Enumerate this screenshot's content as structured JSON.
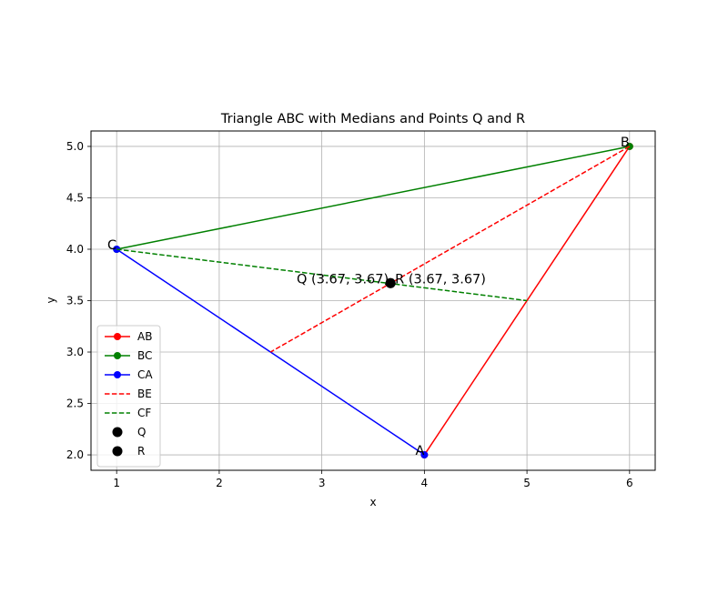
{
  "chart_data": {
    "type": "line",
    "title": "Triangle ABC with Medians and Points Q and R",
    "xlabel": "x",
    "ylabel": "y",
    "xlim": [
      0.75,
      6.25
    ],
    "ylim": [
      1.85,
      5.15
    ],
    "xticks": [
      1,
      2,
      3,
      4,
      5,
      6
    ],
    "xtick_labels": [
      "1",
      "2",
      "3",
      "4",
      "5",
      "6"
    ],
    "yticks": [
      2.0,
      2.5,
      3.0,
      3.5,
      4.0,
      4.5,
      5.0
    ],
    "ytick_labels": [
      "2.0",
      "2.5",
      "3.0",
      "3.5",
      "4.0",
      "4.5",
      "5.0"
    ],
    "grid": true,
    "legend_position": "lower-left",
    "series": [
      {
        "name": "AB",
        "x": [
          4,
          6
        ],
        "y": [
          2,
          5
        ],
        "color": "#ff0000",
        "dash": "solid",
        "marker": true
      },
      {
        "name": "BC",
        "x": [
          6,
          1
        ],
        "y": [
          5,
          4
        ],
        "color": "#008000",
        "dash": "solid",
        "marker": true
      },
      {
        "name": "CA",
        "x": [
          1,
          4
        ],
        "y": [
          4,
          2
        ],
        "color": "#0000ff",
        "dash": "solid",
        "marker": true
      },
      {
        "name": "BE",
        "x": [
          6,
          2.5
        ],
        "y": [
          5,
          3
        ],
        "color": "#ff0000",
        "dash": "dashed",
        "marker": false
      },
      {
        "name": "CF",
        "x": [
          1,
          5
        ],
        "y": [
          4,
          3.5
        ],
        "color": "#008000",
        "dash": "dashed",
        "marker": false
      }
    ],
    "points": [
      {
        "name": "Q",
        "x": 3.67,
        "y": 3.67,
        "color": "#000000",
        "label": "Q (3.67, 3.67)",
        "anchor": "end"
      },
      {
        "name": "R",
        "x": 3.67,
        "y": 3.67,
        "color": "#000000",
        "label": "R (3.67, 3.67)",
        "anchor": "start"
      }
    ],
    "vertex_labels": [
      {
        "text": "A",
        "x": 4,
        "y": 2
      },
      {
        "text": "B",
        "x": 6,
        "y": 5
      },
      {
        "text": "C",
        "x": 1,
        "y": 4
      }
    ]
  }
}
